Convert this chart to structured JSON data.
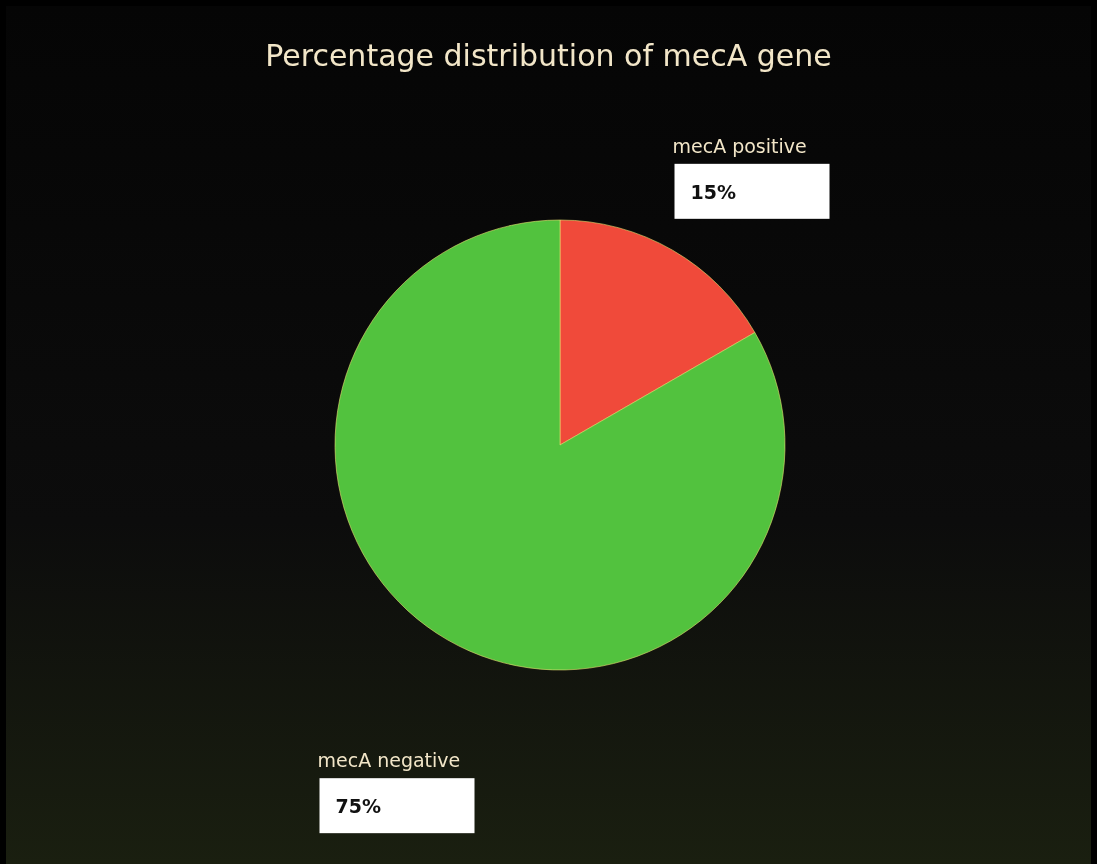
{
  "chart_data": {
    "type": "pie",
    "title": "Percentage distribution of mecA gene",
    "categories": [
      "mecA positive",
      "mecA negative"
    ],
    "values": [
      15,
      75
    ],
    "colors": [
      "#f04a3a",
      "#52c23e"
    ],
    "value_labels": [
      "15%",
      "75%"
    ]
  }
}
